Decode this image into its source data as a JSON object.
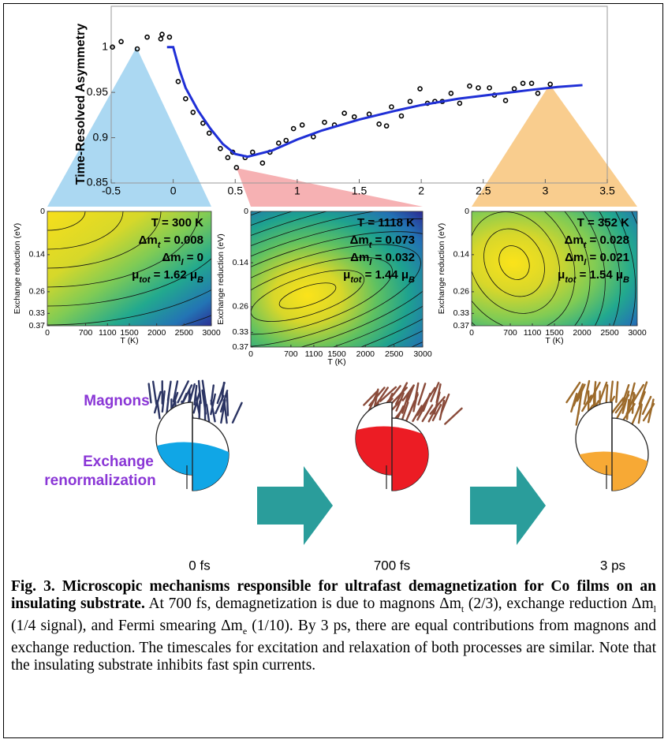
{
  "chart_data": {
    "type": "scatter",
    "y_label": "Time-Resolved Asymmetry",
    "xlim": [
      -0.5,
      3.5
    ],
    "ylim": [
      0.85,
      1.045
    ],
    "xticks": [
      -0.5,
      0,
      0.5,
      1,
      1.5,
      2,
      2.5,
      3,
      3.5
    ],
    "yticks": [
      0.85,
      0.9,
      0.95,
      1
    ],
    "series": [
      {
        "style": "markers",
        "color": "#000000",
        "x": [
          -0.49,
          -0.42,
          -0.29,
          -0.21,
          -0.1,
          -0.09,
          -0.03,
          0.04,
          0.1,
          0.16,
          0.24,
          0.29,
          0.38,
          0.44,
          0.48,
          0.51,
          0.58,
          0.64,
          0.72,
          0.78,
          0.85,
          0.91,
          0.97,
          1.04,
          1.13,
          1.22,
          1.3,
          1.38,
          1.46,
          1.58,
          1.66,
          1.72,
          1.76,
          1.84,
          1.91,
          1.99,
          2.05,
          2.11,
          2.17,
          2.24,
          2.31,
          2.39,
          2.46,
          2.55,
          2.59,
          2.68,
          2.75,
          2.82,
          2.89,
          2.94,
          3.04
        ],
        "values": [
          1.0,
          1.006,
          0.998,
          1.011,
          1.009,
          1.014,
          1.011,
          0.962,
          0.943,
          0.928,
          0.916,
          0.905,
          0.888,
          0.878,
          0.884,
          0.867,
          0.878,
          0.884,
          0.872,
          0.884,
          0.894,
          0.897,
          0.91,
          0.914,
          0.901,
          0.917,
          0.914,
          0.927,
          0.923,
          0.926,
          0.915,
          0.913,
          0.934,
          0.924,
          0.94,
          0.954,
          0.938,
          0.94,
          0.94,
          0.949,
          0.938,
          0.957,
          0.955,
          0.955,
          0.947,
          0.941,
          0.954,
          0.96,
          0.96,
          0.949,
          0.959
        ]
      },
      {
        "style": "line",
        "color": "#1f2fd6",
        "x": [
          -0.05,
          0,
          0.05,
          0.1,
          0.2,
          0.3,
          0.4,
          0.5,
          0.6,
          0.8,
          1.0,
          1.2,
          1.5,
          1.8,
          2.0,
          2.3,
          2.6,
          2.9,
          3.1,
          3.3
        ],
        "values": [
          1.0,
          1.0,
          0.975,
          0.955,
          0.93,
          0.91,
          0.893,
          0.882,
          0.879,
          0.886,
          0.898,
          0.908,
          0.92,
          0.93,
          0.936,
          0.943,
          0.948,
          0.953,
          0.956,
          0.958
        ]
      }
    ]
  },
  "heatmaps": {
    "x_label": "T (K)",
    "y_label": "Exchange reduction (eV)",
    "xlim": [
      0,
      3000
    ],
    "xticks": [
      0,
      700,
      1100,
      1500,
      2000,
      2500,
      3000
    ],
    "ylim": [
      0,
      0.37
    ],
    "yticks": [
      0,
      0.14,
      0.26,
      0.33,
      0.37
    ],
    "panels": [
      {
        "lines": [
          [
            "T = 300 K"
          ],
          [
            "Δm",
            "t",
            " = 0.008"
          ],
          [
            "Δm",
            "l",
            " = 0"
          ],
          [
            "μ",
            "tot",
            " = 1.62 μ",
            "B"
          ]
        ]
      },
      {
        "lines": [
          [
            "T = 1118 K"
          ],
          [
            "Δm",
            "t",
            " = 0.073"
          ],
          [
            "Δm",
            "l",
            " = 0.032"
          ],
          [
            "μ",
            "tot",
            " = 1.44 μ",
            "B"
          ]
        ]
      },
      {
        "lines": [
          [
            "T = 352 K"
          ],
          [
            "Δm",
            "t",
            " = 0.028"
          ],
          [
            "Δm",
            "l",
            " = 0.021"
          ],
          [
            "μ",
            "tot",
            " = 1.54 μ",
            "B"
          ]
        ]
      }
    ]
  },
  "rows": {
    "magnons": "Magnons",
    "exchange": [
      "Exchange",
      "renormalization"
    ]
  },
  "times": [
    "0 fs",
    "700 fs",
    "3 ps"
  ],
  "caption": {
    "label": "Fig. 3.",
    "title": "Microscopic mechanisms responsible for ultrafast demagnetization for Co films on an insulating substrate.",
    "body": [
      "At 700 fs, demagnetization is due to magnons Δm",
      "t",
      " (2/3), exchange reduction Δm",
      "l",
      " (1/4 signal), and Fermi smearing Δm",
      "e",
      " (1/10). By 3 ps, there are equal contributions from magnons and exchange reduction. The timescales for excitation and relaxation of both processes are similar. Note that the insulating substrate inhibits fast spin currents."
    ]
  }
}
